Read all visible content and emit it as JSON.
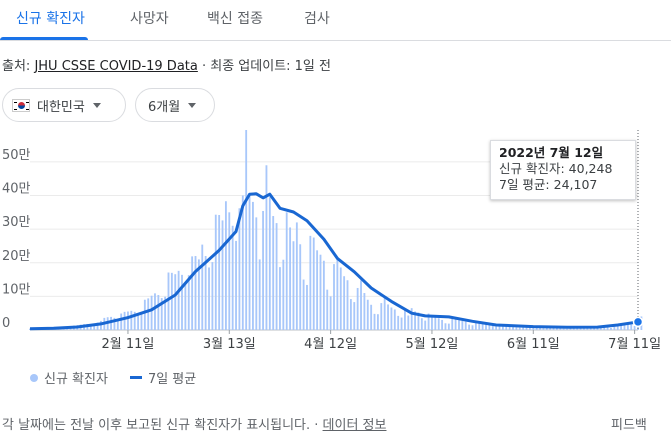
{
  "tabs": [
    {
      "label": "신규 확진자",
      "active": true
    },
    {
      "label": "사망자",
      "active": false
    },
    {
      "label": "백신 접종",
      "active": false
    },
    {
      "label": "검사",
      "active": false
    }
  ],
  "source": {
    "prefix": "출처: ",
    "link": "JHU CSSE COVID-19 Data",
    "suffix": " · 최종 업데이트: 1일 전"
  },
  "filters": {
    "country": "대한민국",
    "period": "6개월"
  },
  "tooltip": {
    "date": "2022년 7월 12일",
    "new_cases": "신규 확진자: 40,248",
    "avg_7day": "7일 평균: 24,107"
  },
  "legend": {
    "bars_label": "신규 확진자",
    "line_label": "7일 평균"
  },
  "footer": {
    "note": "각 날짜에는 전날 이후 보고된 신규 확진자가 표시됩니다.",
    "sep": " · ",
    "link": "데이터 정보",
    "feedback": "피드백"
  },
  "colors": {
    "bars": "#a8c7fa",
    "line": "#1967d2",
    "accent": "#1a73e8"
  },
  "chart_data": {
    "type": "bar",
    "title": "",
    "xlabel": "",
    "ylabel": "",
    "x_tick_labels": [
      "2월 11일",
      "3월 13일",
      "4월 12일",
      "5월 12일",
      "6월 11일",
      "7월 11일"
    ],
    "y_tick_labels": [
      "0",
      "10만",
      "20만",
      "30만",
      "40만",
      "50만"
    ],
    "ylim": [
      0,
      580000
    ],
    "start": "2022-01-13",
    "end": "2022-07-12",
    "grid": true,
    "series": [
      {
        "name": "신규 확진자",
        "kind": "bar",
        "daily_values": [
          4000,
          4100,
          4300,
          4500,
          5000,
          5200,
          5800,
          6500,
          7600,
          8000,
          8600,
          9000,
          8500,
          13000,
          14500,
          16000,
          17500,
          18000,
          17500,
          17000,
          22000,
          27000,
          36000,
          38000,
          39000,
          36000,
          28000,
          49000,
          54000,
          55000,
          57000,
          54000,
          45000,
          53000,
          90000,
          94000,
          102000,
          109000,
          104000,
          95000,
          99000,
          171000,
          170000,
          166000,
          176000,
          164000,
          139000,
          163000,
          219000,
          220000,
          210000,
          254000,
          220000,
          186000,
          202000,
          343000,
          342000,
          326000,
          383000,
          350000,
          310000,
          265000,
          362000,
          400000,
          621000,
          407000,
          381000,
          335000,
          210000,
          354000,
          490000,
          395000,
          339000,
          318000,
          187000,
          209000,
          350000,
          305000,
          264000,
          320000,
          255000,
          150000,
          134000,
          280000,
          275000,
          237000,
          224000,
          206000,
          120000,
          100000,
          196000,
          215000,
          186000,
          160000,
          148000,
          92000,
          83000,
          125000,
          148000,
          110000,
          90000,
          75000,
          48000,
          47000,
          80000,
          96000,
          76000,
          67000,
          61000,
          42000,
          37000,
          58000,
          43000,
          65000,
          55000,
          52000,
          35000,
          28000,
          49000,
          43000,
          40000,
          35000,
          30000,
          20000,
          19000,
          33000,
          32000,
          29000,
          27000,
          25000,
          16000,
          14000,
          24000,
          23000,
          21000,
          20000,
          18000,
          12000,
          10000,
          17000,
          16000,
          14000,
          13000,
          12000,
          8000,
          7000,
          13000,
          12000,
          11000,
          10000,
          9500,
          6000,
          5000,
          10000,
          9800,
          9500,
          8000,
          7500,
          4000,
          3500,
          7000,
          7500,
          7800,
          7000,
          6500,
          4500,
          6000,
          10000,
          9900,
          9000,
          8500,
          8000,
          6000,
          10000,
          18000,
          20000,
          19000,
          19300,
          16000,
          12000,
          20000,
          40248
        ]
      },
      {
        "name": "7일 평균",
        "kind": "line",
        "points": [
          [
            "2022-01-13",
            4000
          ],
          [
            "2022-01-20",
            5500
          ],
          [
            "2022-01-27",
            9000
          ],
          [
            "2022-02-03",
            18000
          ],
          [
            "2022-02-11",
            37000
          ],
          [
            "2022-02-18",
            60000
          ],
          [
            "2022-02-25",
            104000
          ],
          [
            "2022-03-03",
            174000
          ],
          [
            "2022-03-10",
            237000
          ],
          [
            "2022-03-15",
            293000
          ],
          [
            "2022-03-17",
            369000
          ],
          [
            "2022-03-19",
            404000
          ],
          [
            "2022-03-21",
            405000
          ],
          [
            "2022-03-23",
            393000
          ],
          [
            "2022-03-25",
            404000
          ],
          [
            "2022-03-28",
            362000
          ],
          [
            "2022-04-01",
            351000
          ],
          [
            "2022-04-05",
            325000
          ],
          [
            "2022-04-10",
            270000
          ],
          [
            "2022-04-14",
            213000
          ],
          [
            "2022-04-19",
            173000
          ],
          [
            "2022-04-24",
            125000
          ],
          [
            "2022-04-30",
            85000
          ],
          [
            "2022-05-06",
            50000
          ],
          [
            "2022-05-10",
            42000
          ],
          [
            "2022-05-17",
            39000
          ],
          [
            "2022-05-24",
            26000
          ],
          [
            "2022-05-31",
            15000
          ],
          [
            "2022-06-11",
            10000
          ],
          [
            "2022-06-21",
            8000
          ],
          [
            "2022-06-30",
            8500
          ],
          [
            "2022-07-06",
            15000
          ],
          [
            "2022-07-12",
            24107
          ]
        ]
      }
    ]
  }
}
